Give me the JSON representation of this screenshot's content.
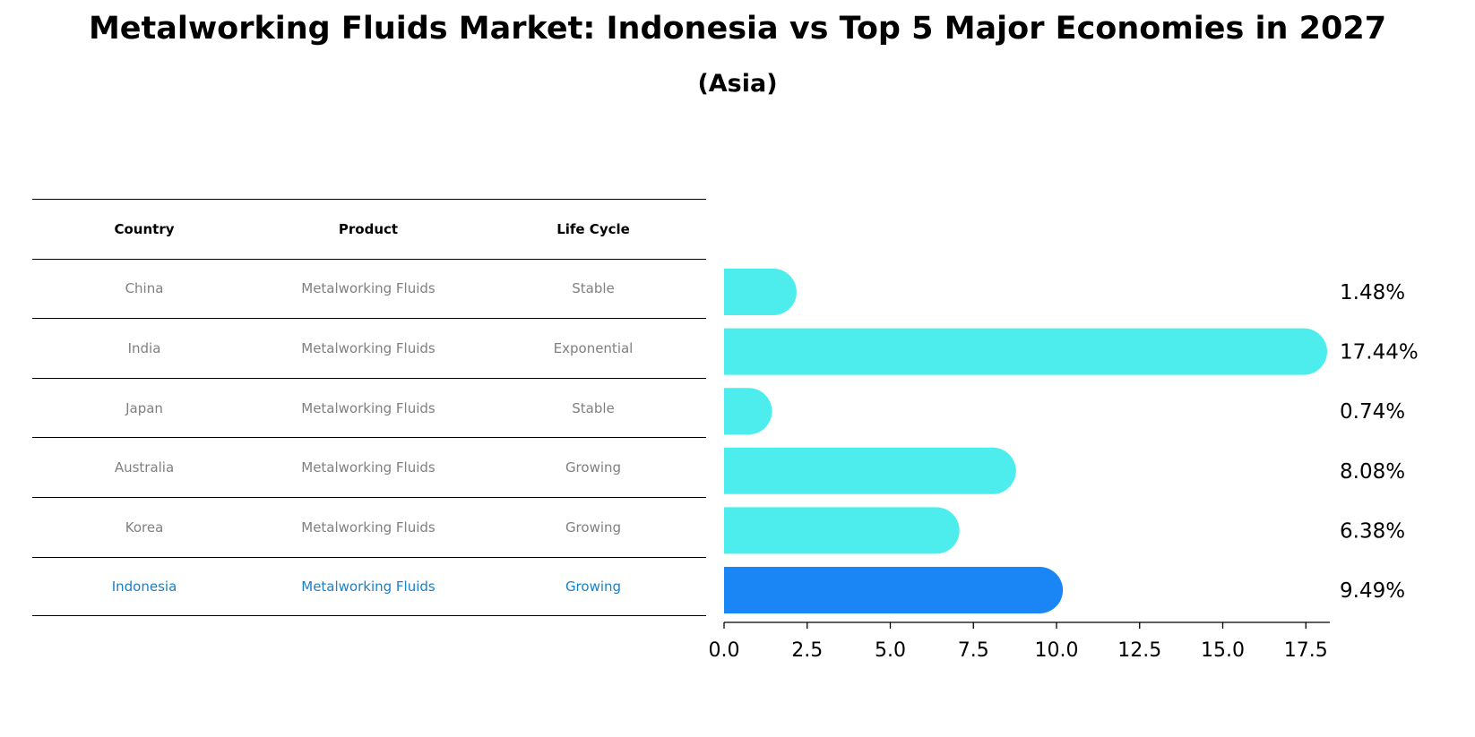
{
  "title": "Metalworking Fluids Market: Indonesia vs Top 5 Major Economies in 2027",
  "subtitle": "(Asia)",
  "table": {
    "headers": [
      "Country",
      "Product",
      "Life Cycle"
    ],
    "rows": [
      [
        "China",
        "Metalworking Fluids",
        "Stable"
      ],
      [
        "India",
        "Metalworking Fluids",
        "Exponential"
      ],
      [
        "Japan",
        "Metalworking Fluids",
        "Stable"
      ],
      [
        "Australia",
        "Metalworking Fluids",
        "Growing"
      ],
      [
        "Korea",
        "Metalworking Fluids",
        "Growing"
      ],
      [
        "Indonesia",
        "Metalworking Fluids",
        "Growing"
      ]
    ],
    "highlight_row": 5,
    "highlight_color": "#1a80c8"
  },
  "chart_data": {
    "type": "bar",
    "orientation": "horizontal",
    "categories": [
      "China",
      "India",
      "Japan",
      "Australia",
      "Korea",
      "Indonesia"
    ],
    "values": [
      1.48,
      17.44,
      0.74,
      8.08,
      6.38,
      9.49
    ],
    "value_labels": [
      "1.48%",
      "17.44%",
      "0.74%",
      "8.08%",
      "6.38%",
      "9.49%"
    ],
    "xlim": [
      0,
      17.44
    ],
    "xticks": [
      0.0,
      2.5,
      5.0,
      7.5,
      10.0,
      12.5,
      15.0,
      17.5
    ],
    "xtick_labels": [
      "0.0",
      "2.5",
      "5.0",
      "7.5",
      "10.0",
      "12.5",
      "15.0",
      "17.5"
    ],
    "colors": {
      "default": "#4deded",
      "highlight": "#1a86f5"
    },
    "highlight_index": 5,
    "grid": false
  }
}
